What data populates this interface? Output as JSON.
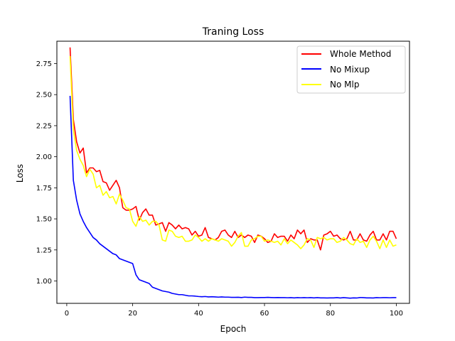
{
  "chart_data": {
    "type": "line",
    "title": "Traning Loss",
    "xlabel": "Epoch",
    "ylabel": "Loss",
    "xlim": [
      -3,
      104
    ],
    "ylim": [
      0.82,
      2.93
    ],
    "xticks": [
      0,
      20,
      40,
      60,
      80,
      100
    ],
    "xtick_labels": [
      "0",
      "20",
      "40",
      "60",
      "80",
      "100"
    ],
    "yticks": [
      1.0,
      1.25,
      1.5,
      1.75,
      2.0,
      2.25,
      2.5,
      2.75
    ],
    "ytick_labels": [
      "1.00",
      "1.25",
      "1.50",
      "1.75",
      "2.00",
      "2.25",
      "2.50",
      "2.75"
    ],
    "grid": false,
    "legend_position": "top-right",
    "x": [
      1,
      2,
      3,
      4,
      5,
      6,
      7,
      8,
      9,
      10,
      11,
      12,
      13,
      14,
      15,
      16,
      17,
      18,
      19,
      20,
      21,
      22,
      23,
      24,
      25,
      26,
      27,
      28,
      29,
      30,
      31,
      32,
      33,
      34,
      35,
      36,
      37,
      38,
      39,
      40,
      41,
      42,
      43,
      44,
      45,
      46,
      47,
      48,
      49,
      50,
      51,
      52,
      53,
      54,
      55,
      56,
      57,
      58,
      59,
      60,
      61,
      62,
      63,
      64,
      65,
      66,
      67,
      68,
      69,
      70,
      71,
      72,
      73,
      74,
      75,
      76,
      77,
      78,
      79,
      80,
      81,
      82,
      83,
      84,
      85,
      86,
      87,
      88,
      89,
      90,
      91,
      92,
      93,
      94,
      95,
      96,
      97,
      98,
      99,
      100
    ],
    "series": [
      {
        "name": "Whole Method",
        "color": "#ff0000",
        "values": [
          2.88,
          2.3,
          2.12,
          2.03,
          2.07,
          1.87,
          1.91,
          1.91,
          1.88,
          1.89,
          1.8,
          1.79,
          1.73,
          1.77,
          1.81,
          1.75,
          1.59,
          1.57,
          1.57,
          1.58,
          1.6,
          1.49,
          1.55,
          1.58,
          1.53,
          1.53,
          1.45,
          1.46,
          1.47,
          1.4,
          1.47,
          1.45,
          1.42,
          1.45,
          1.42,
          1.43,
          1.42,
          1.37,
          1.4,
          1.36,
          1.37,
          1.43,
          1.35,
          1.34,
          1.33,
          1.35,
          1.4,
          1.41,
          1.37,
          1.35,
          1.4,
          1.35,
          1.37,
          1.35,
          1.37,
          1.36,
          1.31,
          1.37,
          1.36,
          1.34,
          1.31,
          1.32,
          1.38,
          1.35,
          1.36,
          1.36,
          1.32,
          1.37,
          1.34,
          1.41,
          1.38,
          1.41,
          1.31,
          1.34,
          1.33,
          1.33,
          1.25,
          1.37,
          1.38,
          1.4,
          1.36,
          1.37,
          1.34,
          1.33,
          1.34,
          1.4,
          1.33,
          1.33,
          1.38,
          1.33,
          1.32,
          1.37,
          1.4,
          1.33,
          1.33,
          1.38,
          1.33,
          1.4,
          1.4,
          1.34
        ]
      },
      {
        "name": "No Mixup",
        "color": "#0000ff",
        "values": [
          2.49,
          1.81,
          1.65,
          1.54,
          1.48,
          1.43,
          1.39,
          1.35,
          1.33,
          1.3,
          1.28,
          1.26,
          1.24,
          1.22,
          1.21,
          1.18,
          1.17,
          1.16,
          1.15,
          1.14,
          1.05,
          1.01,
          1.0,
          0.99,
          0.98,
          0.95,
          0.94,
          0.93,
          0.92,
          0.915,
          0.91,
          0.9,
          0.895,
          0.89,
          0.89,
          0.885,
          0.88,
          0.88,
          0.878,
          0.875,
          0.873,
          0.875,
          0.872,
          0.873,
          0.872,
          0.87,
          0.872,
          0.87,
          0.87,
          0.868,
          0.868,
          0.869,
          0.867,
          0.87,
          0.868,
          0.868,
          0.866,
          0.866,
          0.867,
          0.867,
          0.868,
          0.867,
          0.866,
          0.867,
          0.866,
          0.866,
          0.865,
          0.866,
          0.864,
          0.866,
          0.865,
          0.866,
          0.865,
          0.866,
          0.864,
          0.866,
          0.864,
          0.864,
          0.863,
          0.864,
          0.864,
          0.866,
          0.863,
          0.866,
          0.864,
          0.862,
          0.864,
          0.863,
          0.867,
          0.866,
          0.864,
          0.864,
          0.863,
          0.866,
          0.865,
          0.866,
          0.866,
          0.865,
          0.866,
          0.866
        ]
      },
      {
        "name": "No Mlp",
        "color": "#ffff00",
        "values": [
          2.81,
          2.22,
          2.05,
          1.98,
          1.93,
          1.84,
          1.9,
          1.86,
          1.75,
          1.77,
          1.69,
          1.72,
          1.67,
          1.68,
          1.62,
          1.7,
          1.65,
          1.59,
          1.58,
          1.48,
          1.44,
          1.52,
          1.48,
          1.49,
          1.45,
          1.48,
          1.48,
          1.45,
          1.33,
          1.32,
          1.41,
          1.4,
          1.36,
          1.35,
          1.36,
          1.32,
          1.32,
          1.33,
          1.37,
          1.35,
          1.32,
          1.34,
          1.32,
          1.34,
          1.33,
          1.32,
          1.34,
          1.33,
          1.32,
          1.28,
          1.31,
          1.36,
          1.39,
          1.28,
          1.28,
          1.33,
          1.34,
          1.36,
          1.36,
          1.32,
          1.33,
          1.32,
          1.31,
          1.32,
          1.29,
          1.34,
          1.3,
          1.33,
          1.31,
          1.29,
          1.26,
          1.29,
          1.34,
          1.33,
          1.27,
          1.35,
          1.34,
          1.35,
          1.33,
          1.34,
          1.34,
          1.31,
          1.32,
          1.35,
          1.33,
          1.3,
          1.29,
          1.34,
          1.31,
          1.32,
          1.27,
          1.33,
          1.36,
          1.32,
          1.26,
          1.33,
          1.27,
          1.33,
          1.28,
          1.29
        ]
      }
    ]
  }
}
